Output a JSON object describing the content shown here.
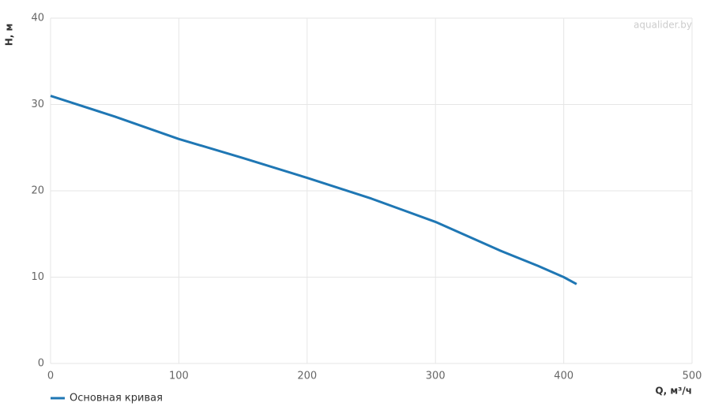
{
  "chart_data": {
    "type": "line",
    "xlabel": "Q, м³/ч",
    "ylabel": "H, м",
    "watermark": "aqualider.by",
    "x": [
      0,
      50,
      100,
      150,
      200,
      250,
      300,
      350,
      380,
      400,
      410
    ],
    "series": [
      {
        "name": "Основная кривая",
        "color": "#1f77b4",
        "values": [
          31.0,
          28.6,
          26.0,
          23.8,
          21.5,
          19.1,
          16.4,
          13.1,
          11.3,
          10.0,
          9.2
        ]
      }
    ],
    "xlim": [
      0,
      500
    ],
    "xticks": [
      0,
      100,
      200,
      300,
      400,
      500
    ],
    "ylim": [
      0,
      40
    ],
    "yticks": [
      0,
      10,
      20,
      30,
      40
    ],
    "grid": true
  }
}
